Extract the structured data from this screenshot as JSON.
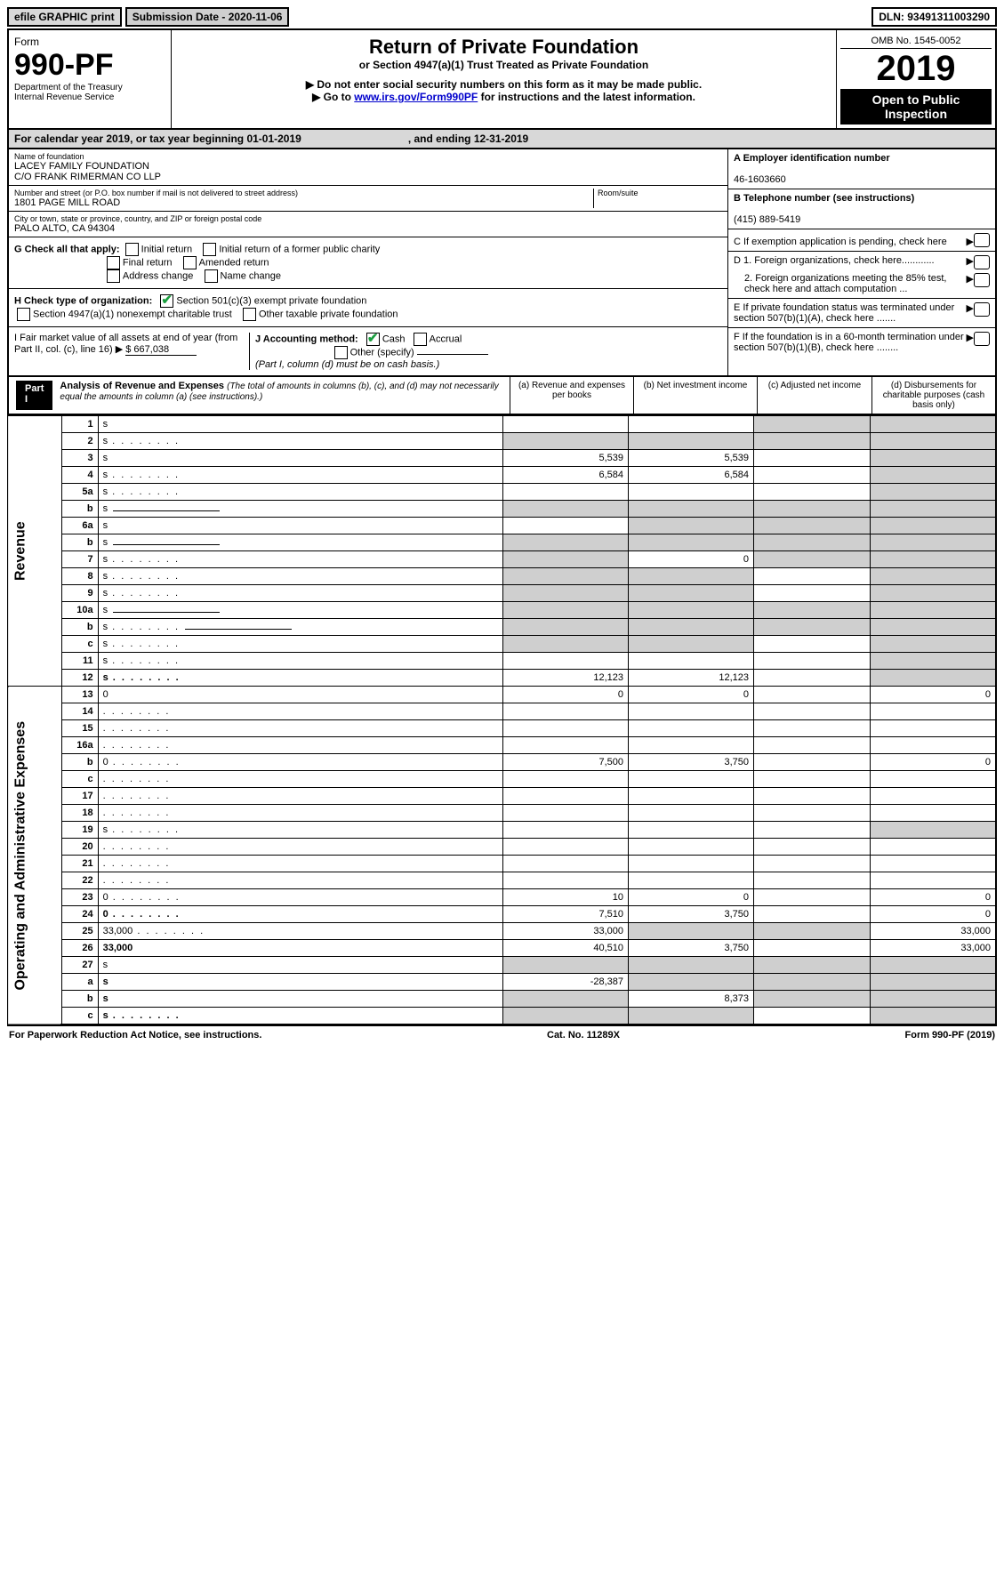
{
  "top": {
    "efile": "efile GRAPHIC print",
    "submission": "Submission Date - 2020-11-06",
    "dln": "DLN: 93491311003290"
  },
  "header": {
    "form_word": "Form",
    "form_num": "990-PF",
    "dept1": "Department of the Treasury",
    "dept2": "Internal Revenue Service",
    "title": "Return of Private Foundation",
    "subtitle": "or Section 4947(a)(1) Trust Treated as Private Foundation",
    "note1": "Do not enter social security numbers on this form as it may be made public.",
    "note2_pre": "Go to ",
    "note2_link": "www.irs.gov/Form990PF",
    "note2_post": " for instructions and the latest information.",
    "omb": "OMB No. 1545-0052",
    "year": "2019",
    "open": "Open to Public Inspection"
  },
  "calendar": {
    "text": "For calendar year 2019, or tax year beginning 01-01-2019",
    "ending": ", and ending 12-31-2019"
  },
  "info": {
    "name_label": "Name of foundation",
    "name1": "LACEY FAMILY FOUNDATION",
    "name2": "C/O FRANK RIMERMAN CO LLP",
    "addr_label": "Number and street (or P.O. box number if mail is not delivered to street address)",
    "room_label": "Room/suite",
    "addr": "1801 PAGE MILL ROAD",
    "city_label": "City or town, state or province, country, and ZIP or foreign postal code",
    "city": "PALO ALTO, CA   94304",
    "ein_label": "A Employer identification number",
    "ein": "46-1603660",
    "phone_label": "B Telephone number (see instructions)",
    "phone": "(415) 889-5419",
    "c_label": "C If exemption application is pending, check here",
    "d1": "D 1. Foreign organizations, check here............",
    "d2": "2. Foreign organizations meeting the 85% test, check here and attach computation ...",
    "e": "E  If private foundation status was terminated under section 507(b)(1)(A), check here .......",
    "f": "F  If the foundation is in a 60-month termination under section 507(b)(1)(B), check here ........"
  },
  "g": {
    "label": "G Check all that apply:",
    "opts": [
      "Initial return",
      "Initial return of a former public charity",
      "Final return",
      "Amended return",
      "Address change",
      "Name change"
    ]
  },
  "h": {
    "label": "H Check type of organization:",
    "o1": "Section 501(c)(3) exempt private foundation",
    "o2": "Section 4947(a)(1) nonexempt charitable trust",
    "o3": "Other taxable private foundation"
  },
  "i": {
    "label": "I Fair market value of all assets at end of year (from Part II, col. (c), line 16)",
    "value": "$  667,038"
  },
  "j": {
    "label": "J Accounting method:",
    "cash": "Cash",
    "accrual": "Accrual",
    "other": "Other (specify)",
    "note": "(Part I, column (d) must be on cash basis.)"
  },
  "part1": {
    "label": "Part I",
    "title": "Analysis of Revenue and Expenses",
    "title_note": "(The total of amounts in columns (b), (c), and (d) may not necessarily equal the amounts in column (a) (see instructions).)",
    "cols": {
      "a": "(a) Revenue and expenses per books",
      "b": "(b) Net investment income",
      "c": "(c) Adjusted net income",
      "d": "(d) Disbursements for charitable purposes (cash basis only)"
    }
  },
  "side_labels": {
    "revenue": "Revenue",
    "expenses": "Operating and Administrative Expenses"
  },
  "rows": [
    {
      "n": "1",
      "d": "s",
      "a": "",
      "b": "",
      "c": "s"
    },
    {
      "n": "2",
      "d": "s",
      "a": "s",
      "b": "s",
      "c": "s",
      "dots": true
    },
    {
      "n": "3",
      "d": "s",
      "a": "5,539",
      "b": "5,539",
      "c": ""
    },
    {
      "n": "4",
      "d": "s",
      "a": "6,584",
      "b": "6,584",
      "c": "",
      "dots": true
    },
    {
      "n": "5a",
      "d": "s",
      "a": "",
      "b": "",
      "c": "",
      "dots": true
    },
    {
      "n": "b",
      "d": "s",
      "a": "s",
      "b": "s",
      "c": "s",
      "underline": true
    },
    {
      "n": "6a",
      "d": "s",
      "a": "",
      "b": "s",
      "c": "s"
    },
    {
      "n": "b",
      "d": "s",
      "a": "s",
      "b": "s",
      "c": "s",
      "underline": true
    },
    {
      "n": "7",
      "d": "s",
      "a": "s",
      "b": "0",
      "c": "s",
      "dots": true
    },
    {
      "n": "8",
      "d": "s",
      "a": "s",
      "b": "s",
      "c": "",
      "dots": true
    },
    {
      "n": "9",
      "d": "s",
      "a": "s",
      "b": "s",
      "c": "",
      "dots": true
    },
    {
      "n": "10a",
      "d": "s",
      "a": "s",
      "b": "s",
      "c": "s",
      "underline": true
    },
    {
      "n": "b",
      "d": "s",
      "a": "s",
      "b": "s",
      "c": "s",
      "underline": true,
      "dots": true
    },
    {
      "n": "c",
      "d": "s",
      "a": "s",
      "b": "s",
      "c": "",
      "dots": true
    },
    {
      "n": "11",
      "d": "s",
      "a": "",
      "b": "",
      "c": "",
      "dots": true
    },
    {
      "n": "12",
      "d": "s",
      "a": "12,123",
      "b": "12,123",
      "c": "",
      "bold": true,
      "dots": true
    },
    {
      "n": "13",
      "d": "0",
      "a": "0",
      "b": "0",
      "c": ""
    },
    {
      "n": "14",
      "d": "",
      "a": "",
      "b": "",
      "c": "",
      "dots": true
    },
    {
      "n": "15",
      "d": "",
      "a": "",
      "b": "",
      "c": "",
      "dots": true
    },
    {
      "n": "16a",
      "d": "",
      "a": "",
      "b": "",
      "c": "",
      "dots": true
    },
    {
      "n": "b",
      "d": "0",
      "a": "7,500",
      "b": "3,750",
      "c": "",
      "dots": true
    },
    {
      "n": "c",
      "d": "",
      "a": "",
      "b": "",
      "c": "",
      "dots": true
    },
    {
      "n": "17",
      "d": "",
      "a": "",
      "b": "",
      "c": "",
      "dots": true
    },
    {
      "n": "18",
      "d": "",
      "a": "",
      "b": "",
      "c": "",
      "dots": true
    },
    {
      "n": "19",
      "d": "s",
      "a": "",
      "b": "",
      "c": "",
      "dots": true
    },
    {
      "n": "20",
      "d": "",
      "a": "",
      "b": "",
      "c": "",
      "dots": true
    },
    {
      "n": "21",
      "d": "",
      "a": "",
      "b": "",
      "c": "",
      "dots": true
    },
    {
      "n": "22",
      "d": "",
      "a": "",
      "b": "",
      "c": "",
      "dots": true
    },
    {
      "n": "23",
      "d": "0",
      "a": "10",
      "b": "0",
      "c": "",
      "dots": true
    },
    {
      "n": "24",
      "d": "0",
      "a": "7,510",
      "b": "3,750",
      "c": "",
      "bold": true,
      "dots": true
    },
    {
      "n": "25",
      "d": "33,000",
      "a": "33,000",
      "b": "s",
      "c": "s",
      "dots": true
    },
    {
      "n": "26",
      "d": "33,000",
      "a": "40,510",
      "b": "3,750",
      "c": "",
      "bold": true
    },
    {
      "n": "27",
      "d": "s",
      "a": "s",
      "b": "s",
      "c": "s"
    },
    {
      "n": "a",
      "d": "s",
      "a": "-28,387",
      "b": "s",
      "c": "s",
      "bold": true
    },
    {
      "n": "b",
      "d": "s",
      "a": "s",
      "b": "8,373",
      "c": "s",
      "bold": true
    },
    {
      "n": "c",
      "d": "s",
      "a": "s",
      "b": "s",
      "c": "",
      "bold": true,
      "dots": true
    }
  ],
  "footer": {
    "left": "For Paperwork Reduction Act Notice, see instructions.",
    "mid": "Cat. No. 11289X",
    "right": "Form 990-PF (2019)"
  }
}
